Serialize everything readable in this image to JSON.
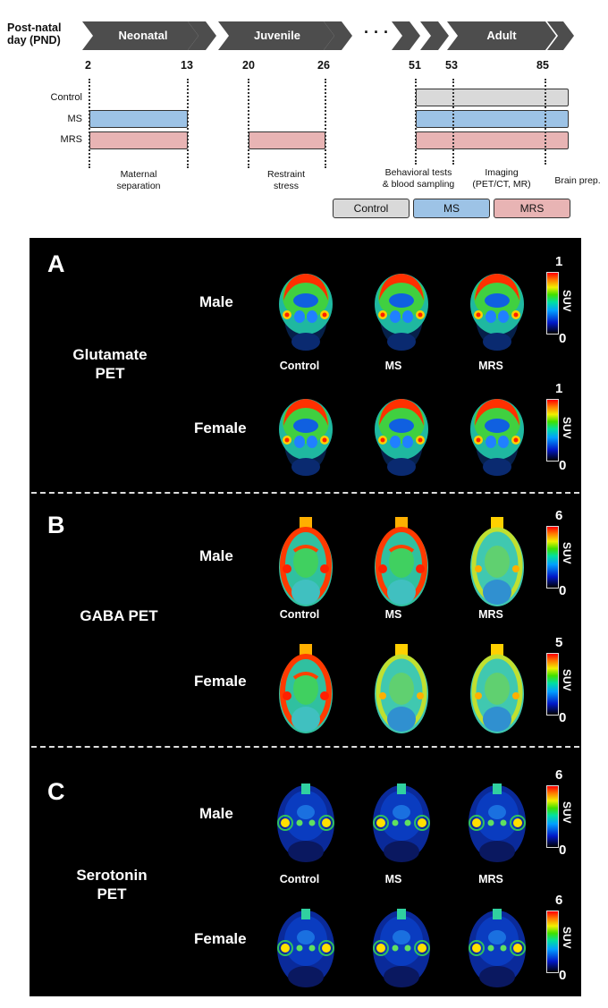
{
  "timeline": {
    "title_line1": "Post-natal",
    "title_line2": "day (PND)",
    "stages": [
      "Neonatal",
      "Juvenile",
      "· · ·",
      "Adult"
    ],
    "days": [
      "2",
      "13",
      "20",
      "26",
      "51",
      "53",
      "85"
    ],
    "groups": [
      "Control",
      "MS",
      "MRS"
    ],
    "annotations": {
      "maternal_l1": "Maternal",
      "maternal_l2": "separation",
      "restraint_l1": "Restraint",
      "restraint_l2": "stress",
      "behav_l1": "Behavioral tests",
      "behav_l2": "& blood sampling",
      "imaging_l1": "Imaging",
      "imaging_l2": "(PET/CT, MR)",
      "brain": "Brain prep."
    },
    "legend": [
      "Control",
      "MS",
      "MRS"
    ],
    "colors": {
      "control": "#d9d9d9",
      "ms": "#9dc3e6",
      "mrs": "#e8b4b4",
      "arrow": "#4d4d4d"
    }
  },
  "panels": [
    {
      "letter": "A",
      "modality_l1": "Glutamate",
      "modality_l2": "PET",
      "male": "Male",
      "female": "Female",
      "groups": [
        "Control",
        "MS",
        "MRS"
      ],
      "male_scale_max": "1",
      "female_scale_max": "1",
      "scale_min": "0",
      "unit": "SUV"
    },
    {
      "letter": "B",
      "modality_l1": "GABA PET",
      "modality_l2": "",
      "male": "Male",
      "female": "Female",
      "groups": [
        "Control",
        "MS",
        "MRS"
      ],
      "male_scale_max": "6",
      "female_scale_max": "5",
      "scale_min": "0",
      "unit": "SUV"
    },
    {
      "letter": "C",
      "modality_l1": "Serotonin",
      "modality_l2": "PET",
      "male": "Male",
      "female": "Female",
      "groups": [
        "Control",
        "MS",
        "MRS"
      ],
      "male_scale_max": "6",
      "female_scale_max": "6",
      "scale_min": "0",
      "unit": "SUV"
    }
  ]
}
